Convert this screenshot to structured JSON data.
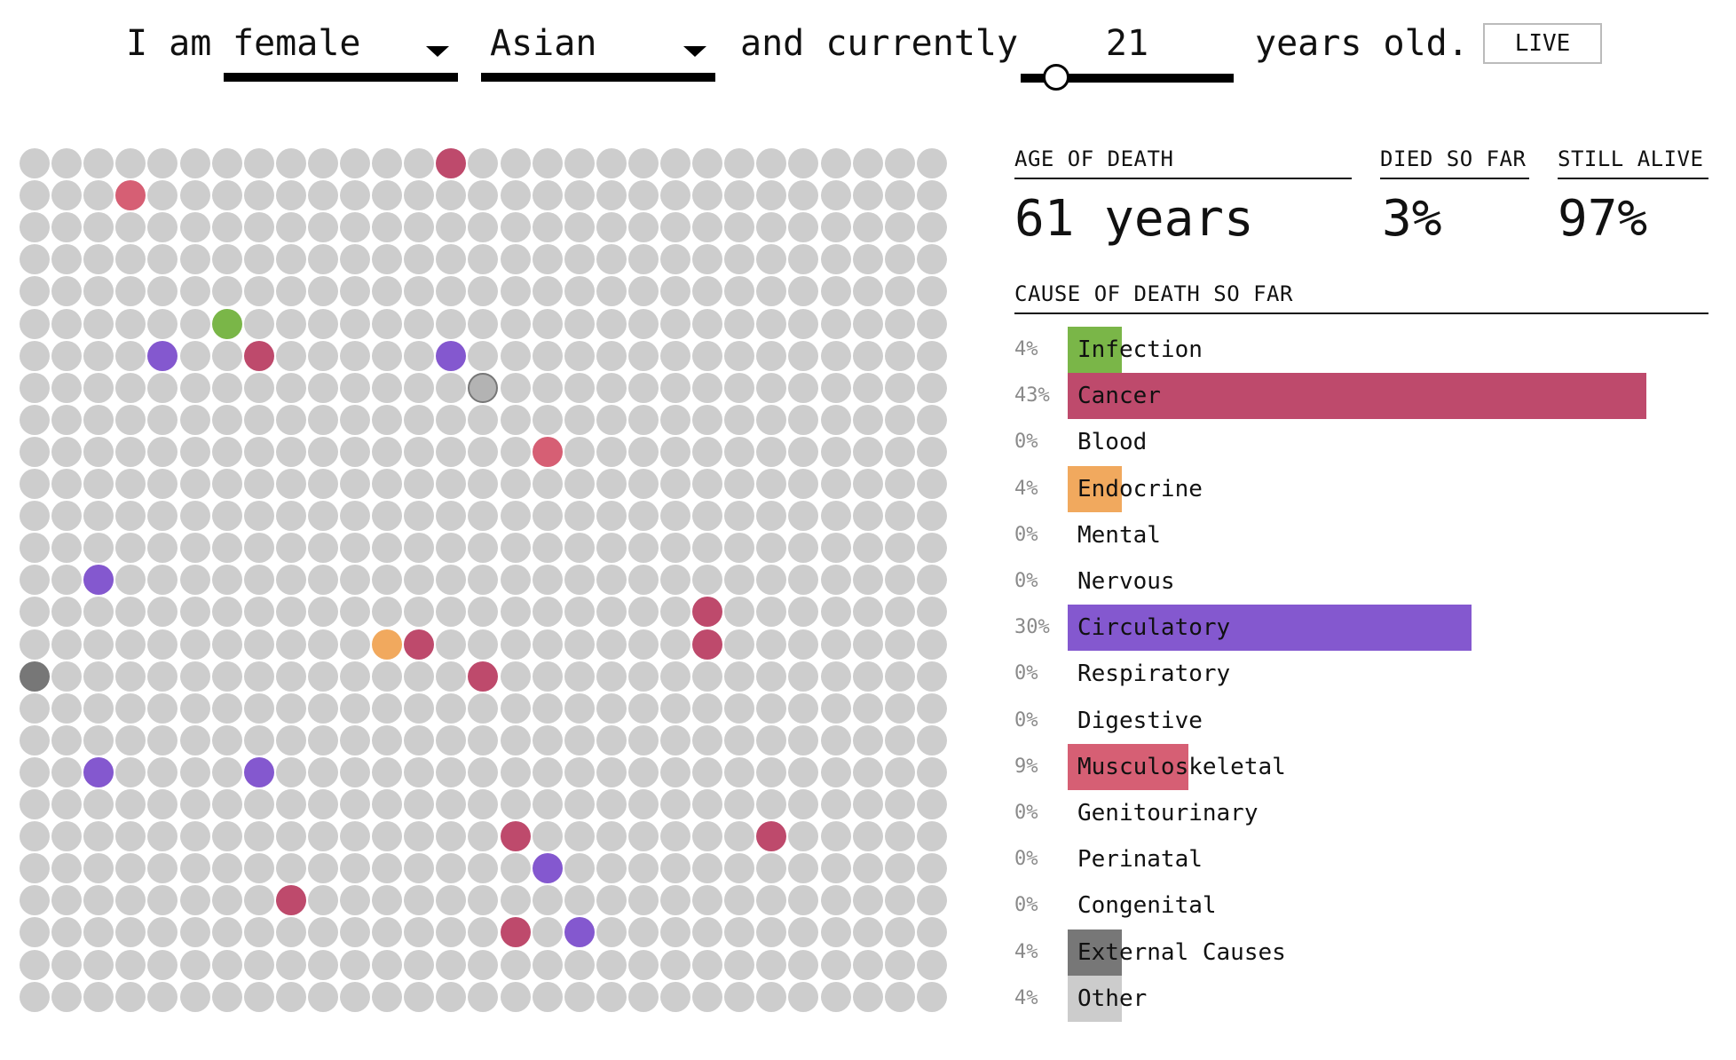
{
  "header": {
    "prefix": "I am",
    "sex": {
      "selected": "female"
    },
    "race": {
      "selected": "Asian"
    },
    "middle": "and currently",
    "age": {
      "value": "21",
      "slider_fraction": 0.167
    },
    "suffix": "years old.",
    "live_label": "LIVE"
  },
  "stats": {
    "age_of_death": {
      "label": "AGE OF DEATH",
      "value": "61 years"
    },
    "died_so_far": {
      "label": "DIED SO FAR",
      "value": "3%"
    },
    "still_alive": {
      "label": "STILL ALIVE",
      "value": "97%"
    }
  },
  "causes": {
    "heading": "CAUSE OF DEATH SO FAR",
    "items": [
      {
        "pct": "4%",
        "value": 4,
        "label": "Infection",
        "color": "#7ab648"
      },
      {
        "pct": "43%",
        "value": 43,
        "label": "Cancer",
        "color": "#be4a6c"
      },
      {
        "pct": "0%",
        "value": 0,
        "label": "Blood",
        "color": "#cccccc"
      },
      {
        "pct": "4%",
        "value": 4,
        "label": "Endocrine",
        "color": "#f1a95e"
      },
      {
        "pct": "0%",
        "value": 0,
        "label": "Mental",
        "color": "#cccccc"
      },
      {
        "pct": "0%",
        "value": 0,
        "label": "Nervous",
        "color": "#cccccc"
      },
      {
        "pct": "30%",
        "value": 30,
        "label": "Circulatory",
        "color": "#8458cf"
      },
      {
        "pct": "0%",
        "value": 0,
        "label": "Respiratory",
        "color": "#cccccc"
      },
      {
        "pct": "0%",
        "value": 0,
        "label": "Digestive",
        "color": "#cccccc"
      },
      {
        "pct": "9%",
        "value": 9,
        "label": "Musculoskeletal",
        "color": "#d65f74"
      },
      {
        "pct": "0%",
        "value": 0,
        "label": "Genitourinary",
        "color": "#cccccc"
      },
      {
        "pct": "0%",
        "value": 0,
        "label": "Perinatal",
        "color": "#cccccc"
      },
      {
        "pct": "0%",
        "value": 0,
        "label": "Congenital",
        "color": "#cccccc"
      },
      {
        "pct": "4%",
        "value": 4,
        "label": "External Causes",
        "color": "#777777"
      },
      {
        "pct": "4%",
        "value": 4,
        "label": "Other",
        "color": "#cccccc"
      }
    ]
  },
  "dot_grid": {
    "columns": 29,
    "rows": 27,
    "default_color": "#cdcdcd",
    "highlighted": [
      {
        "col": 13,
        "row": 0,
        "cause": "Cancer"
      },
      {
        "col": 3,
        "row": 1,
        "cause": "Musculoskeletal"
      },
      {
        "col": 6,
        "row": 5,
        "cause": "Infection"
      },
      {
        "col": 4,
        "row": 6,
        "cause": "Circulatory"
      },
      {
        "col": 7,
        "row": 6,
        "cause": "Cancer"
      },
      {
        "col": 13,
        "row": 6,
        "cause": "Circulatory"
      },
      {
        "col": 14,
        "row": 7,
        "cause": "Other"
      },
      {
        "col": 16,
        "row": 9,
        "cause": "Musculoskeletal"
      },
      {
        "col": 2,
        "row": 13,
        "cause": "Circulatory"
      },
      {
        "col": 21,
        "row": 14,
        "cause": "Cancer"
      },
      {
        "col": 11,
        "row": 15,
        "cause": "Endocrine"
      },
      {
        "col": 12,
        "row": 15,
        "cause": "Cancer"
      },
      {
        "col": 21,
        "row": 15,
        "cause": "Cancer"
      },
      {
        "col": 0,
        "row": 16,
        "cause": "External Causes"
      },
      {
        "col": 14,
        "row": 16,
        "cause": "Cancer"
      },
      {
        "col": 2,
        "row": 19,
        "cause": "Circulatory"
      },
      {
        "col": 7,
        "row": 19,
        "cause": "Circulatory"
      },
      {
        "col": 15,
        "row": 21,
        "cause": "Cancer"
      },
      {
        "col": 23,
        "row": 21,
        "cause": "Cancer"
      },
      {
        "col": 16,
        "row": 22,
        "cause": "Circulatory"
      },
      {
        "col": 8,
        "row": 23,
        "cause": "Cancer"
      },
      {
        "col": 15,
        "row": 24,
        "cause": "Cancer"
      },
      {
        "col": 17,
        "row": 24,
        "cause": "Circulatory"
      }
    ]
  }
}
